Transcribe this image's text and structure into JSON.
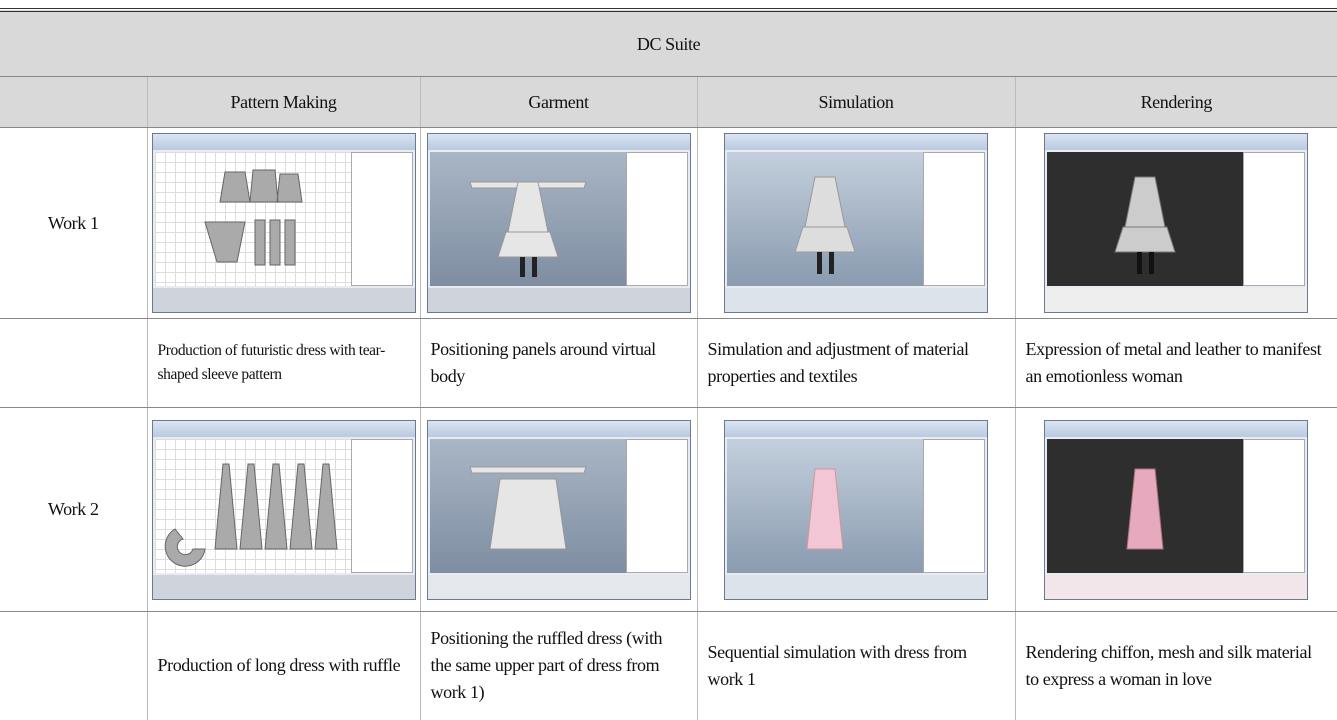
{
  "table": {
    "title": "DC Suite",
    "columns": [
      "Pattern Making",
      "Garment",
      "Simulation",
      "Rendering"
    ],
    "rows": [
      {
        "label": "Work 1",
        "descriptions": [
          "Production of futuristic dress with tear-shaped sleeve pattern",
          "Positioning panels around virtual body",
          "Simulation and adjustment of material properties and textiles",
          "Expression of metal and leather to manifest an emotionless woman"
        ]
      },
      {
        "label": "Work 2",
        "descriptions": [
          "Production of long dress with ruffle",
          "Positioning the ruffled dress (with the same upper part of dress from work 1)",
          "Sequential simulation with dress from work 1",
          "Rendering chiffon, mesh and silk material to express a woman in love"
        ]
      }
    ]
  }
}
